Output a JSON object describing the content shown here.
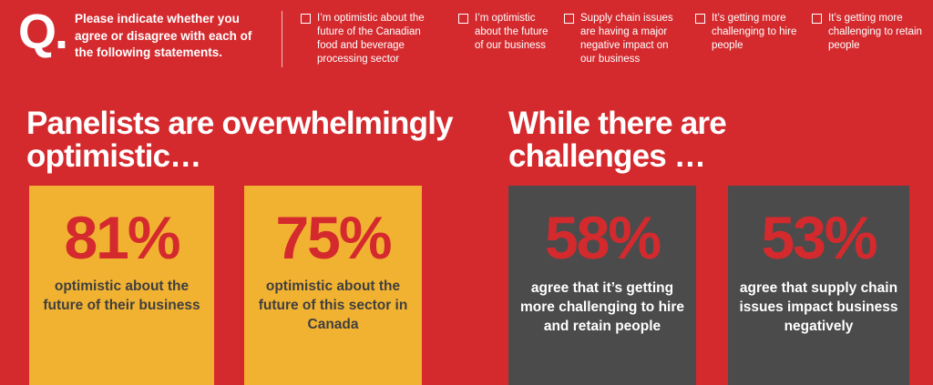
{
  "question": {
    "mark": "Q.",
    "text": "Please indicate whether you agree or disagree with each of the following statements."
  },
  "statements": [
    "I’m optimistic about the future of the Canadian food and beverage processing sector",
    "I’m optimistic about the future of our business",
    "Supply chain issues are having a major negative impact on our business",
    "It’s getting more challenging to hire people",
    "It’s getting more challenging to retain people"
  ],
  "sections": [
    {
      "headline": "Panelists are overwhelmingly optimistic…",
      "cards": [
        {
          "value": "81%",
          "label": "optimistic about the future of their business"
        },
        {
          "value": "75%",
          "label": "optimistic about the future of this sector in Canada"
        }
      ]
    },
    {
      "headline": "While there are challenges …",
      "cards": [
        {
          "value": "58%",
          "label": "agree that it’s getting more challenging to hire and retain people"
        },
        {
          "value": "53%",
          "label": "agree that supply chain issues impact business negatively"
        }
      ]
    }
  ],
  "colors": {
    "background": "#d42a2e",
    "optimism_card": "#f2b231",
    "challenge_card": "#4c4b4c",
    "stat_text": "#d42a2e"
  }
}
